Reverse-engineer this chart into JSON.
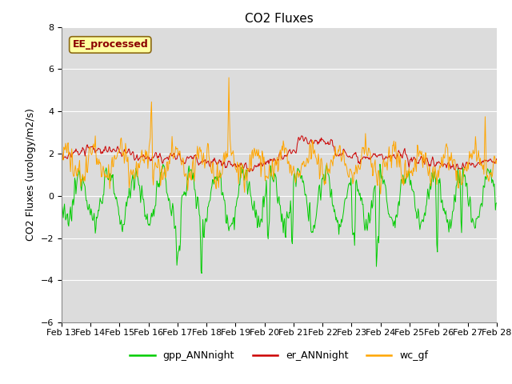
{
  "title": "CO2 Fluxes",
  "ylabel": "CO2 Fluxes (urology/m2/s)",
  "ylim": [
    -6,
    8
  ],
  "yticks": [
    -6,
    -4,
    -2,
    0,
    2,
    4,
    6,
    8
  ],
  "annotation_text": "EE_processed",
  "annotation_color": "#8B0000",
  "annotation_bg": "#FFFFA0",
  "annotation_edge": "#8B6914",
  "plot_bg": "#DCDCDC",
  "grid_color": "white",
  "line_gpp_color": "#00CC00",
  "line_er_color": "#CC0000",
  "line_wc_color": "#FFA500",
  "legend_labels": [
    "gpp_ANNnight",
    "er_ANNnight",
    "wc_gf"
  ],
  "title_fontsize": 11,
  "axis_label_fontsize": 9,
  "tick_fontsize": 8,
  "linewidth": 0.7
}
